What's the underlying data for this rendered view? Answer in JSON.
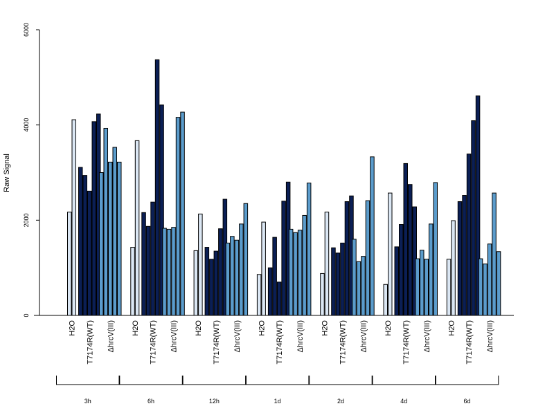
{
  "chart_data": {
    "type": "bar",
    "ylabel": "Raw Signal",
    "ylim": [
      0,
      6000
    ],
    "yticks": [
      0,
      2000,
      4000,
      6000
    ],
    "group_labels": [
      "H2O",
      "T7174R(WT)",
      "ΔhrcV(III)"
    ],
    "colors": {
      "H2O": "#dbe7f4",
      "T7174R(WT)": "#0b1f55",
      "ΔhrcV(III)": "#5b9ccc"
    },
    "timepoints": [
      {
        "label": "3h",
        "groups": [
          [
            2170,
            4110
          ],
          [
            3110,
            2940,
            2610,
            4070,
            4230
          ],
          [
            3000,
            3930,
            3220,
            3530,
            3220
          ]
        ]
      },
      {
        "label": "6h",
        "groups": [
          [
            1430,
            3670
          ],
          [
            2160,
            1870,
            2380,
            5370,
            4420
          ],
          [
            1830,
            1810,
            1850,
            4160,
            4270
          ]
        ]
      },
      {
        "label": "12h",
        "groups": [
          [
            1360,
            2130
          ],
          [
            1430,
            1180,
            1350,
            1820,
            2440
          ],
          [
            1520,
            1660,
            1580,
            1920,
            2350
          ]
        ]
      },
      {
        "label": "1d",
        "groups": [
          [
            860,
            1960
          ],
          [
            1000,
            1640,
            700,
            2400,
            2800
          ],
          [
            1810,
            1740,
            1790,
            2100,
            2780
          ]
        ]
      },
      {
        "label": "2d",
        "groups": [
          [
            880,
            2170
          ],
          [
            1420,
            1310,
            1520,
            2390,
            2510
          ],
          [
            1600,
            1130,
            1240,
            2410,
            3330
          ]
        ]
      },
      {
        "label": "4d",
        "groups": [
          [
            650,
            2570
          ],
          [
            1440,
            1910,
            3190,
            2750,
            2280
          ],
          [
            1190,
            1370,
            1180,
            1920,
            2790
          ]
        ]
      },
      {
        "label": "6d",
        "groups": [
          [
            1180,
            1990
          ],
          [
            2390,
            2520,
            3390,
            4090,
            4610
          ],
          [
            1190,
            1080,
            1500,
            2570,
            1340
          ]
        ]
      }
    ]
  }
}
